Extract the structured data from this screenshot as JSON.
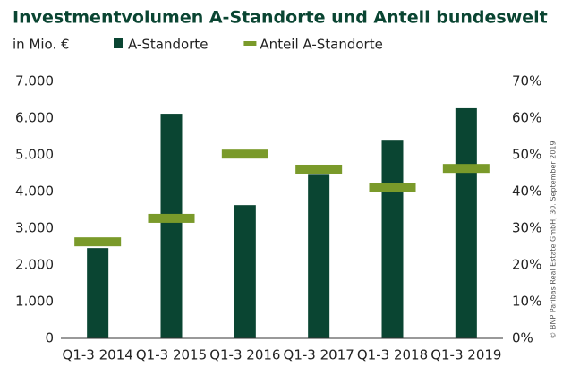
{
  "chart_data": {
    "type": "bar",
    "title": "Investmentvolumen A-Standorte und Anteil bundesweit",
    "unit_label": "in Mio. €",
    "note": "© BNP Paribas Real Estate GmbH, 30. September 2019",
    "categories": [
      "Q1-3 2014",
      "Q1-3 2015",
      "Q1-3 2016",
      "Q1-3 2017",
      "Q1-3 2018",
      "Q1-3 2019"
    ],
    "series": [
      {
        "name": "A-Standorte",
        "color": "#0a4532",
        "values": [
          2460,
          6120,
          3630,
          4480,
          5410,
          6270
        ]
      },
      {
        "name": "Anteil A-Standorte",
        "color": "#7a9a2a",
        "axis": "y2",
        "marker": "dash",
        "values": [
          26.3,
          32.7,
          50.2,
          46.1,
          41.2,
          46.3
        ]
      }
    ],
    "ylim": [
      0,
      7000
    ],
    "yticks": [
      {
        "value": 0,
        "label": "0"
      },
      {
        "value": 1000,
        "label": "1.000"
      },
      {
        "value": 2000,
        "label": "2.000"
      },
      {
        "value": 3000,
        "label": "3.000"
      },
      {
        "value": 4000,
        "label": "4.000"
      },
      {
        "value": 5000,
        "label": "5.000"
      },
      {
        "value": 6000,
        "label": "6.000"
      },
      {
        "value": 7000,
        "label": "7.000"
      }
    ],
    "y2lim": [
      0,
      70
    ],
    "y2ticks": [
      {
        "value": 0,
        "label": "0%"
      },
      {
        "value": 10,
        "label": "10%"
      },
      {
        "value": 20,
        "label": "20%"
      },
      {
        "value": 30,
        "label": "30%"
      },
      {
        "value": 40,
        "label": "40%"
      },
      {
        "value": 50,
        "label": "50%"
      },
      {
        "value": 60,
        "label": "60%"
      },
      {
        "value": 70,
        "label": "70%"
      }
    ],
    "grid": false
  }
}
